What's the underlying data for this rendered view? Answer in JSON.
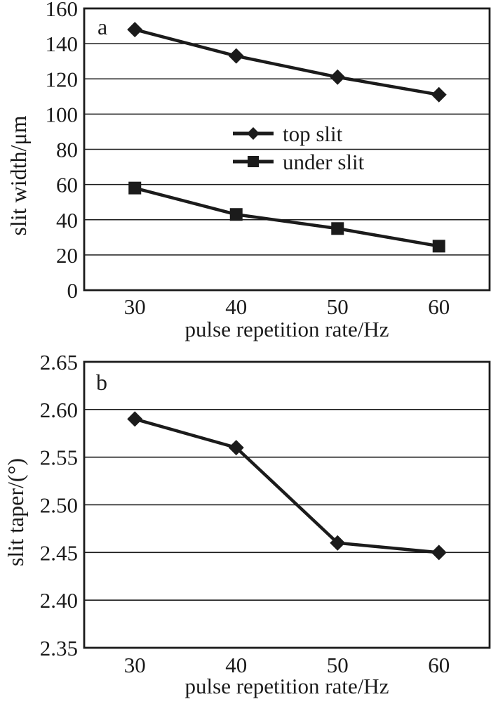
{
  "page": {
    "background": "#ffffff",
    "ink": "#1b1b1b"
  },
  "chart_data": [
    {
      "panel_label": "a",
      "type": "line",
      "xlabel": "pulse repetition rate/Hz",
      "ylabel": "slit width/μm",
      "x": [
        30,
        40,
        50,
        60
      ],
      "xtick_labels": [
        "30",
        "40",
        "50",
        "60"
      ],
      "xlim": [
        25,
        65
      ],
      "ylim": [
        0,
        160
      ],
      "yticks": [
        0,
        20,
        40,
        60,
        80,
        100,
        120,
        140,
        160
      ],
      "ytick_labels": [
        "0",
        "20",
        "40",
        "60",
        "80",
        "100",
        "120",
        "140",
        "160"
      ],
      "grid": "horizontal",
      "legend_position": "inside-upper-middle",
      "series": [
        {
          "name": "top slit",
          "marker": "diamond",
          "values": [
            148,
            133,
            121,
            111
          ]
        },
        {
          "name": "under slit",
          "marker": "square",
          "values": [
            58,
            43,
            35,
            25
          ]
        }
      ]
    },
    {
      "panel_label": "b",
      "type": "line",
      "xlabel": "pulse repetition rate/Hz",
      "ylabel": "slit taper/(°)",
      "x": [
        30,
        40,
        50,
        60
      ],
      "xtick_labels": [
        "30",
        "40",
        "50",
        "60"
      ],
      "xlim": [
        25,
        65
      ],
      "ylim": [
        2.35,
        2.65
      ],
      "yticks": [
        2.35,
        2.4,
        2.45,
        2.5,
        2.55,
        2.6,
        2.65
      ],
      "ytick_labels": [
        "2.35",
        "2.40",
        "2.45",
        "2.50",
        "2.55",
        "2.60",
        "2.65"
      ],
      "grid": "horizontal",
      "legend_position": "none",
      "series": [
        {
          "marker": "diamond",
          "values": [
            2.59,
            2.56,
            2.46,
            2.45
          ]
        }
      ]
    }
  ]
}
